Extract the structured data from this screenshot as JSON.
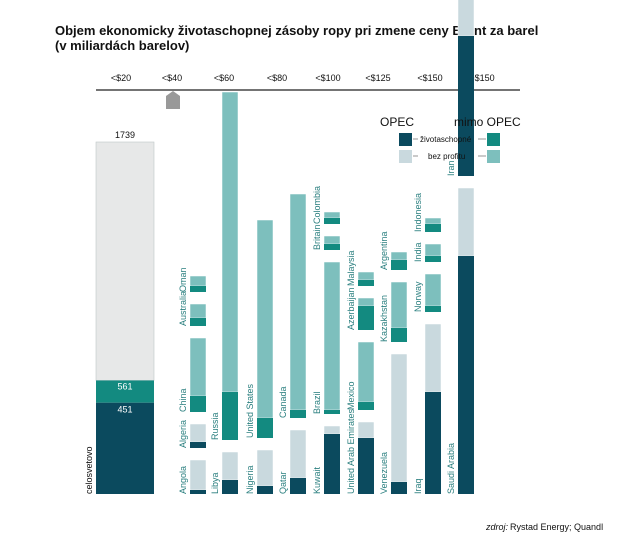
{
  "chart_data": {
    "type": "bar",
    "title_line1": "Objem ekonomicky životaschopnej zásoby ropy pri zmene ceny Brent  za barel",
    "title_line2": "(v miliardách barelov)",
    "price_bands": [
      "<$20",
      "<$40",
      "<$60",
      "<$80",
      "<$100",
      "<$125",
      "<$150",
      ">$150"
    ],
    "legend": {
      "opec": "OPEC",
      "non_opec": "mimo OPEC",
      "viable": "životaschopné",
      "not_profitable": "bez profitu"
    },
    "colors": {
      "opec_viable": "#0b4a5e",
      "opec_not_profitable": "#c9d9de",
      "non_opec_viable": "#138a80",
      "non_opec_not_profitable": "#7dbfbd",
      "total_not_profitable": "#e7e8e8",
      "axis": "#222222"
    },
    "source_label": "zdroj:",
    "source_text": "Rystad Energy; Quandl",
    "total": {
      "label": "celosvetovo",
      "total": 1739,
      "viable_non_opec": 561,
      "viable_opec": 451,
      "total_label": "1739",
      "non_opec_label": "561",
      "opec_label": "451"
    },
    "columns": [
      {
        "countries": [
          {
            "name": "Oman",
            "group": "non_opec",
            "base": 0,
            "viable": 3,
            "total": 8
          },
          {
            "name": "Australia",
            "group": "non_opec",
            "base": 0,
            "viable": 4,
            "total": 11
          },
          {
            "name": "China",
            "group": "non_opec",
            "base": 0,
            "viable": 8,
            "total": 37
          },
          {
            "name": "Algeria",
            "group": "opec",
            "base": 0,
            "viable": 3,
            "total": 12
          },
          {
            "name": "Angola",
            "group": "opec",
            "base": 0,
            "viable": 2,
            "total": 17
          }
        ]
      },
      {
        "countries": [
          {
            "name": "Russia",
            "group": "non_opec",
            "base": 0,
            "viable": 24,
            "total": 174
          },
          {
            "name": "Libya",
            "group": "opec",
            "base": 0,
            "viable": 7,
            "total": 21
          }
        ]
      },
      {
        "countries": [
          {
            "name": "United States",
            "group": "non_opec",
            "base": 0,
            "viable": 10,
            "total": 109
          },
          {
            "name": "Nigeria",
            "group": "opec",
            "base": 0,
            "viable": 4,
            "total": 22
          }
        ]
      },
      {
        "countries": [
          {
            "name": "Canada",
            "group": "non_opec",
            "base": 0,
            "viable": 4,
            "total": 112
          },
          {
            "name": "Qatar",
            "group": "opec",
            "base": 0,
            "viable": 8,
            "total": 32
          }
        ]
      },
      {
        "countries": [
          {
            "name": "Colombia",
            "group": "non_opec",
            "base": 0,
            "viable": 3,
            "total": 6
          },
          {
            "name": "Britain",
            "group": "non_opec",
            "base": 0,
            "viable": 3,
            "total": 7
          },
          {
            "name": "Brazil",
            "group": "non_opec",
            "base": 0,
            "viable": 2,
            "total": 76
          },
          {
            "name": "Kuwait",
            "group": "opec",
            "base": 0,
            "viable": 30,
            "total": 34
          }
        ]
      },
      {
        "countries": [
          {
            "name": "Malaysia",
            "group": "non_opec",
            "base": 0,
            "viable": 3,
            "total": 7
          },
          {
            "name": "Azerbaijan",
            "group": "non_opec",
            "base": 0,
            "viable": 12,
            "total": 16
          },
          {
            "name": "Mexico",
            "group": "non_opec",
            "base": 0,
            "viable": 4,
            "total": 34
          },
          {
            "name": "United Arab Emirates",
            "group": "opec",
            "base": 0,
            "viable": 28,
            "total": 36
          }
        ]
      },
      {
        "countries": [
          {
            "name": "Argentina",
            "group": "non_opec",
            "base": 0,
            "viable": 5,
            "total": 9
          },
          {
            "name": "Kazakhstan",
            "group": "non_opec",
            "base": 0,
            "viable": 7,
            "total": 30
          },
          {
            "name": "Venezuela",
            "group": "opec",
            "base": 0,
            "viable": 6,
            "total": 70
          }
        ]
      },
      {
        "countries": [
          {
            "name": "Indonesia",
            "group": "non_opec",
            "base": 0,
            "viable": 4,
            "total": 7
          },
          {
            "name": "India",
            "group": "non_opec",
            "base": 0,
            "viable": 3,
            "total": 9
          },
          {
            "name": "Norway",
            "group": "non_opec",
            "base": 0,
            "viable": 3,
            "total": 19
          },
          {
            "name": "Iraq",
            "group": "opec",
            "base": 0,
            "viable": 51,
            "total": 85
          }
        ]
      },
      {
        "countries": [
          {
            "name": "Greenland",
            "group": "non_opec",
            "base": 0,
            "viable": 0,
            "total": 6
          },
          {
            "name": "Madagascar",
            "group": "non_opec",
            "base": 0,
            "viable": 0,
            "total": 13
          },
          {
            "name": "Iran",
            "group": "opec",
            "base": 0,
            "viable": 70,
            "total": 94
          },
          {
            "name": "Saudi Arabia",
            "group": "opec",
            "base": 0,
            "viable": 119,
            "total": 153
          }
        ]
      }
    ]
  }
}
